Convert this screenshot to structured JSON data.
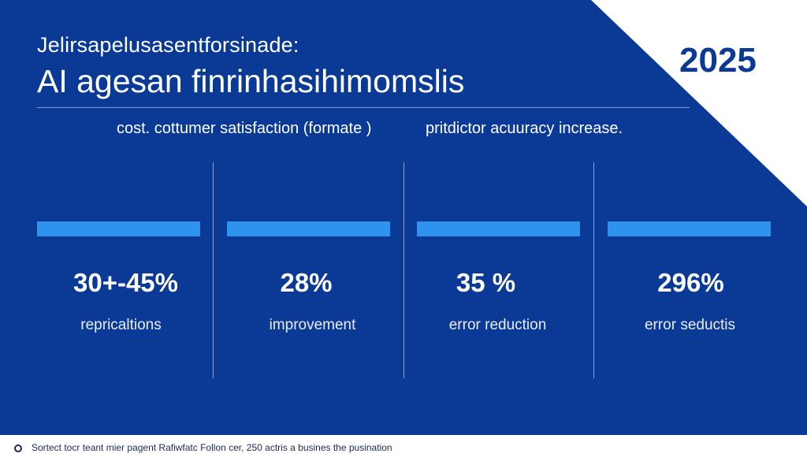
{
  "header": {
    "kicker": "Jelirsapelusasentforsinade:",
    "title": "AI agesan finrinhasihimomslis",
    "year": "2025"
  },
  "subheads": {
    "left": "cost. cottumer satisfaction (formate )",
    "right": "pritdictor acuuracy increase."
  },
  "metrics": [
    {
      "value": "30+-45%",
      "label": "repricaltions"
    },
    {
      "value": "28%",
      "label": "improvement"
    },
    {
      "value": "35 %",
      "label": "error reduction"
    },
    {
      "value": "296%",
      "label": "error seductis"
    }
  ],
  "footer": {
    "icon": "circle-bullet-icon",
    "text": "Sortect tocr teant mier pagent Rafiwfatc Follon cer, 250 actris a busines the pusination"
  },
  "colors": {
    "background": "#0a3a96",
    "accent_bar": "#2e93ec",
    "corner": "#ffffff",
    "text": "#ffffff"
  }
}
